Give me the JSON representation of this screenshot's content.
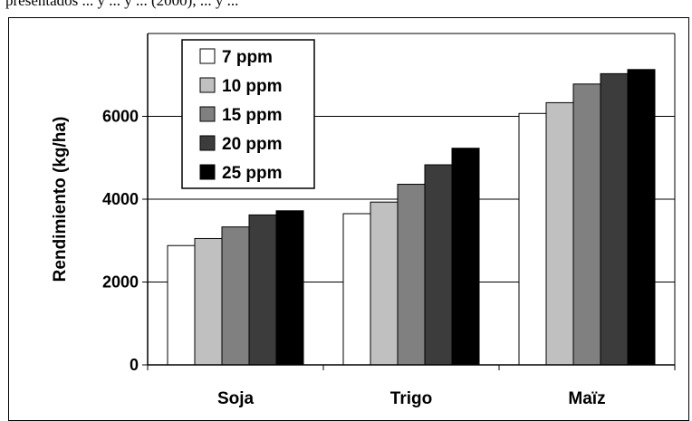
{
  "page": {
    "top_text": "presentados ... y ... y ... (2000), ... y ..."
  },
  "chart_data": {
    "type": "bar",
    "title": "",
    "xlabel": "",
    "ylabel": "Rendimiento (kg/ha)",
    "categories": [
      "Soja",
      "Trigo",
      "Maïz"
    ],
    "ylim": [
      0,
      8000
    ],
    "yticks": [
      0,
      2000,
      4000,
      6000
    ],
    "grid": true,
    "legend_position": "top-left",
    "series": [
      {
        "name": "7 ppm",
        "color": "#ffffff",
        "values": [
          2880,
          3650,
          6070
        ]
      },
      {
        "name": "10 ppm",
        "color": "#c0c0c0",
        "values": [
          3050,
          3930,
          6330
        ]
      },
      {
        "name": "15 ppm",
        "color": "#808080",
        "values": [
          3330,
          4360,
          6780
        ]
      },
      {
        "name": "20 ppm",
        "color": "#3c3c3c",
        "values": [
          3620,
          4830,
          7030
        ]
      },
      {
        "name": "25 ppm",
        "color": "#000000",
        "values": [
          3720,
          5230,
          7130
        ]
      }
    ]
  }
}
